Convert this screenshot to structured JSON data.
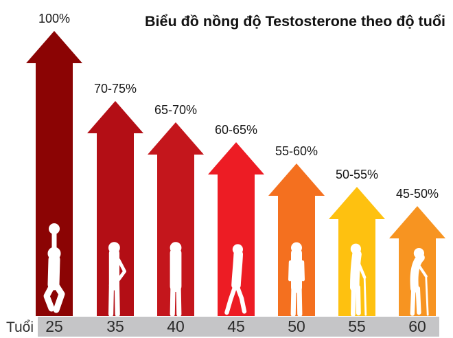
{
  "title": "Biểu đồ nồng độ Testosterone theo độ tuổi",
  "axis": {
    "label": "Tuổi",
    "bar_color": "#c5c5c7",
    "tick_color": "#2b2b2b"
  },
  "chart_data": {
    "type": "bar",
    "bar_shape": "upward-arrow",
    "title": "Biểu đồ nồng độ Testosterone theo độ tuổi",
    "xlabel": "Tuổi",
    "ylabel": "",
    "categories": [
      "25",
      "35",
      "40",
      "45",
      "50",
      "55",
      "60"
    ],
    "values_label": [
      "100%",
      "70-75%",
      "65-70%",
      "60-65%",
      "55-60%",
      "50-55%",
      "45-50%"
    ],
    "values_pct_range": [
      [
        100,
        100
      ],
      [
        70,
        75
      ],
      [
        65,
        70
      ],
      [
        60,
        65
      ],
      [
        55,
        60
      ],
      [
        50,
        55
      ],
      [
        45,
        50
      ]
    ],
    "values_mid": [
      100,
      72.5,
      67.5,
      62.5,
      57.5,
      52.5,
      47.5
    ],
    "bar_colors": [
      "#8b0404",
      "#b30e15",
      "#c4161c",
      "#ed1c24",
      "#f4701f",
      "#fec110",
      "#f79421"
    ],
    "silhouette_color": "#ffffff",
    "silhouettes": [
      "jumping-basketball-player",
      "standing-man-hand-on-hip",
      "standing-man-hands-in-pockets",
      "walking-man",
      "standing-older-man",
      "elderly-man-with-cane",
      "hunched-elderly-man-with-cane"
    ],
    "ylim": [
      0,
      100
    ],
    "grid": false,
    "legend": false
  }
}
